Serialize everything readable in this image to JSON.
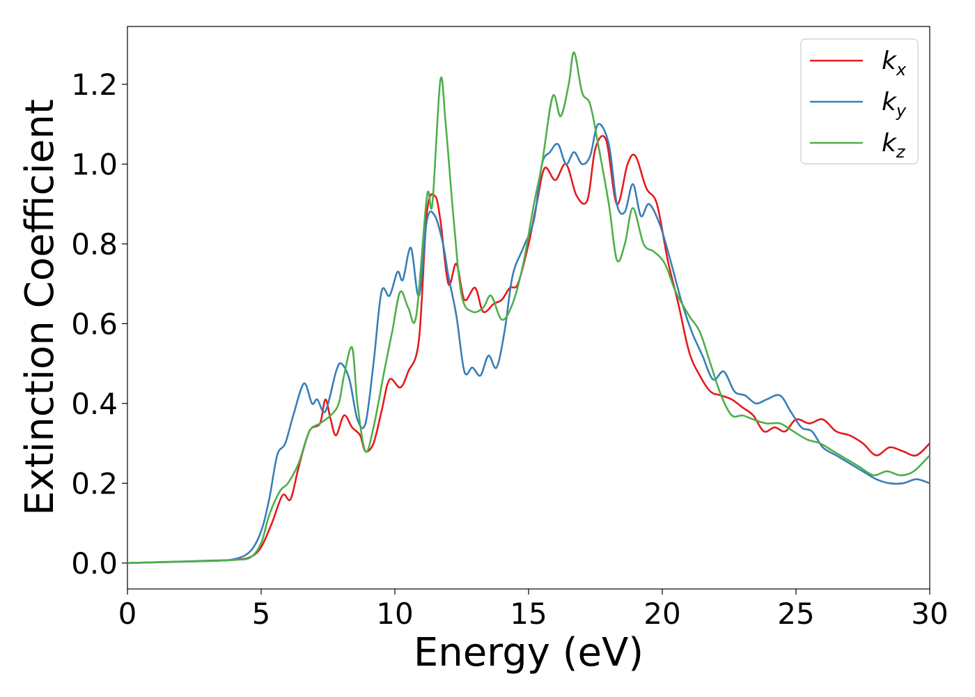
{
  "chart_data": {
    "type": "line",
    "xlabel": "Energy (eV)",
    "ylabel": "Extinction Coefficient",
    "xlim": [
      0,
      30
    ],
    "ylim": [
      -0.065,
      1.345
    ],
    "xticks": [
      "0",
      "5",
      "10",
      "15",
      "20",
      "25",
      "30"
    ],
    "yticks": [
      "0.0",
      "0.2",
      "0.4",
      "0.6",
      "0.8",
      "1.0",
      "1.2"
    ],
    "grid": false,
    "legend_position": "top-right",
    "series": [
      {
        "name": "k",
        "subscript": "x",
        "color": "#e41a1c",
        "points": [
          [
            0,
            0
          ],
          [
            3,
            0.005
          ],
          [
            4,
            0.008
          ],
          [
            4.6,
            0.015
          ],
          [
            5,
            0.04
          ],
          [
            5.4,
            0.1
          ],
          [
            5.8,
            0.17
          ],
          [
            6.1,
            0.16
          ],
          [
            6.4,
            0.24
          ],
          [
            6.8,
            0.33
          ],
          [
            7.2,
            0.35
          ],
          [
            7.4,
            0.41
          ],
          [
            7.6,
            0.36
          ],
          [
            7.8,
            0.32
          ],
          [
            8.1,
            0.37
          ],
          [
            8.4,
            0.34
          ],
          [
            8.7,
            0.32
          ],
          [
            8.9,
            0.28
          ],
          [
            9.2,
            0.3
          ],
          [
            9.5,
            0.38
          ],
          [
            9.8,
            0.46
          ],
          [
            10.2,
            0.44
          ],
          [
            10.5,
            0.48
          ],
          [
            10.9,
            0.56
          ],
          [
            11.2,
            0.88
          ],
          [
            11.5,
            0.92
          ],
          [
            11.7,
            0.86
          ],
          [
            12.0,
            0.7
          ],
          [
            12.3,
            0.75
          ],
          [
            12.6,
            0.66
          ],
          [
            13.0,
            0.69
          ],
          [
            13.3,
            0.63
          ],
          [
            13.7,
            0.65
          ],
          [
            14.0,
            0.66
          ],
          [
            14.3,
            0.69
          ],
          [
            14.6,
            0.7
          ],
          [
            15.0,
            0.8
          ],
          [
            15.3,
            0.9
          ],
          [
            15.6,
            0.99
          ],
          [
            16.0,
            0.96
          ],
          [
            16.4,
            1.0
          ],
          [
            16.8,
            0.92
          ],
          [
            17.2,
            0.91
          ],
          [
            17.5,
            1.04
          ],
          [
            17.9,
            1.06
          ],
          [
            18.3,
            0.9
          ],
          [
            18.7,
            1.0
          ],
          [
            19.0,
            1.02
          ],
          [
            19.4,
            0.94
          ],
          [
            19.8,
            0.9
          ],
          [
            20.2,
            0.76
          ],
          [
            20.6,
            0.65
          ],
          [
            21.0,
            0.53
          ],
          [
            21.4,
            0.47
          ],
          [
            21.8,
            0.43
          ],
          [
            22.2,
            0.42
          ],
          [
            22.6,
            0.41
          ],
          [
            23.0,
            0.39
          ],
          [
            23.4,
            0.37
          ],
          [
            23.8,
            0.33
          ],
          [
            24.2,
            0.34
          ],
          [
            24.6,
            0.33
          ],
          [
            25.0,
            0.36
          ],
          [
            25.5,
            0.35
          ],
          [
            26.0,
            0.36
          ],
          [
            26.5,
            0.33
          ],
          [
            27.0,
            0.32
          ],
          [
            27.5,
            0.3
          ],
          [
            28.0,
            0.27
          ],
          [
            28.5,
            0.29
          ],
          [
            29.0,
            0.28
          ],
          [
            29.5,
            0.27
          ],
          [
            30,
            0.3
          ]
        ]
      },
      {
        "name": "k",
        "subscript": "y",
        "color": "#377eb8",
        "points": [
          [
            0,
            0
          ],
          [
            3,
            0.006
          ],
          [
            4,
            0.01
          ],
          [
            4.6,
            0.03
          ],
          [
            5.0,
            0.08
          ],
          [
            5.3,
            0.16
          ],
          [
            5.6,
            0.27
          ],
          [
            5.9,
            0.3
          ],
          [
            6.2,
            0.37
          ],
          [
            6.6,
            0.45
          ],
          [
            6.9,
            0.4
          ],
          [
            7.1,
            0.41
          ],
          [
            7.4,
            0.38
          ],
          [
            7.8,
            0.48
          ],
          [
            8.0,
            0.5
          ],
          [
            8.3,
            0.46
          ],
          [
            8.6,
            0.36
          ],
          [
            8.9,
            0.35
          ],
          [
            9.2,
            0.5
          ],
          [
            9.5,
            0.68
          ],
          [
            9.8,
            0.67
          ],
          [
            10.1,
            0.73
          ],
          [
            10.3,
            0.71
          ],
          [
            10.6,
            0.79
          ],
          [
            10.9,
            0.67
          ],
          [
            11.2,
            0.86
          ],
          [
            11.5,
            0.87
          ],
          [
            11.8,
            0.8
          ],
          [
            12.0,
            0.72
          ],
          [
            12.3,
            0.62
          ],
          [
            12.6,
            0.48
          ],
          [
            12.9,
            0.49
          ],
          [
            13.2,
            0.47
          ],
          [
            13.5,
            0.52
          ],
          [
            13.8,
            0.49
          ],
          [
            14.1,
            0.58
          ],
          [
            14.4,
            0.72
          ],
          [
            14.8,
            0.79
          ],
          [
            15.2,
            0.86
          ],
          [
            15.5,
            1.0
          ],
          [
            15.8,
            1.03
          ],
          [
            16.1,
            1.05
          ],
          [
            16.4,
            1.0
          ],
          [
            16.7,
            1.03
          ],
          [
            17.0,
            1.0
          ],
          [
            17.3,
            1.02
          ],
          [
            17.6,
            1.1
          ],
          [
            18.0,
            1.05
          ],
          [
            18.3,
            0.9
          ],
          [
            18.6,
            0.88
          ],
          [
            18.9,
            0.95
          ],
          [
            19.2,
            0.87
          ],
          [
            19.5,
            0.9
          ],
          [
            19.9,
            0.85
          ],
          [
            20.3,
            0.76
          ],
          [
            20.7,
            0.66
          ],
          [
            21.1,
            0.58
          ],
          [
            21.5,
            0.52
          ],
          [
            21.9,
            0.46
          ],
          [
            22.3,
            0.48
          ],
          [
            22.7,
            0.43
          ],
          [
            23.1,
            0.42
          ],
          [
            23.5,
            0.4
          ],
          [
            23.9,
            0.41
          ],
          [
            24.4,
            0.42
          ],
          [
            24.8,
            0.38
          ],
          [
            25.2,
            0.34
          ],
          [
            25.6,
            0.33
          ],
          [
            26.0,
            0.29
          ],
          [
            26.5,
            0.27
          ],
          [
            27.0,
            0.25
          ],
          [
            27.5,
            0.23
          ],
          [
            28.0,
            0.21
          ],
          [
            28.5,
            0.2
          ],
          [
            29.0,
            0.2
          ],
          [
            29.5,
            0.21
          ],
          [
            30,
            0.2
          ]
        ]
      },
      {
        "name": "k",
        "subscript": "z",
        "color": "#4daf4a",
        "points": [
          [
            0,
            0
          ],
          [
            3,
            0.005
          ],
          [
            4,
            0.008
          ],
          [
            4.6,
            0.014
          ],
          [
            5.0,
            0.05
          ],
          [
            5.3,
            0.12
          ],
          [
            5.7,
            0.18
          ],
          [
            6.0,
            0.2
          ],
          [
            6.4,
            0.25
          ],
          [
            6.8,
            0.33
          ],
          [
            7.2,
            0.35
          ],
          [
            7.6,
            0.37
          ],
          [
            7.9,
            0.4
          ],
          [
            8.1,
            0.47
          ],
          [
            8.4,
            0.54
          ],
          [
            8.6,
            0.4
          ],
          [
            8.9,
            0.28
          ],
          [
            9.2,
            0.34
          ],
          [
            9.6,
            0.48
          ],
          [
            9.9,
            0.58
          ],
          [
            10.2,
            0.68
          ],
          [
            10.5,
            0.64
          ],
          [
            10.8,
            0.62
          ],
          [
            11.2,
            0.92
          ],
          [
            11.4,
            0.9
          ],
          [
            11.7,
            1.21
          ],
          [
            11.9,
            1.1
          ],
          [
            12.2,
            0.86
          ],
          [
            12.5,
            0.67
          ],
          [
            12.9,
            0.63
          ],
          [
            13.3,
            0.64
          ],
          [
            13.6,
            0.67
          ],
          [
            14.0,
            0.61
          ],
          [
            14.4,
            0.65
          ],
          [
            14.8,
            0.75
          ],
          [
            15.2,
            0.9
          ],
          [
            15.5,
            1.0
          ],
          [
            15.9,
            1.17
          ],
          [
            16.2,
            1.12
          ],
          [
            16.5,
            1.2
          ],
          [
            16.7,
            1.28
          ],
          [
            17.0,
            1.18
          ],
          [
            17.3,
            1.15
          ],
          [
            17.6,
            1.05
          ],
          [
            18.0,
            0.9
          ],
          [
            18.3,
            0.76
          ],
          [
            18.6,
            0.8
          ],
          [
            18.9,
            0.89
          ],
          [
            19.3,
            0.8
          ],
          [
            19.7,
            0.78
          ],
          [
            20.1,
            0.75
          ],
          [
            20.5,
            0.68
          ],
          [
            21.0,
            0.62
          ],
          [
            21.4,
            0.58
          ],
          [
            21.8,
            0.5
          ],
          [
            22.2,
            0.42
          ],
          [
            22.6,
            0.37
          ],
          [
            23.0,
            0.37
          ],
          [
            23.4,
            0.36
          ],
          [
            23.9,
            0.35
          ],
          [
            24.4,
            0.35
          ],
          [
            24.9,
            0.33
          ],
          [
            25.4,
            0.31
          ],
          [
            25.9,
            0.3
          ],
          [
            26.4,
            0.28
          ],
          [
            26.9,
            0.26
          ],
          [
            27.4,
            0.24
          ],
          [
            27.9,
            0.22
          ],
          [
            28.4,
            0.23
          ],
          [
            28.9,
            0.22
          ],
          [
            29.4,
            0.23
          ],
          [
            30,
            0.27
          ]
        ]
      }
    ]
  }
}
